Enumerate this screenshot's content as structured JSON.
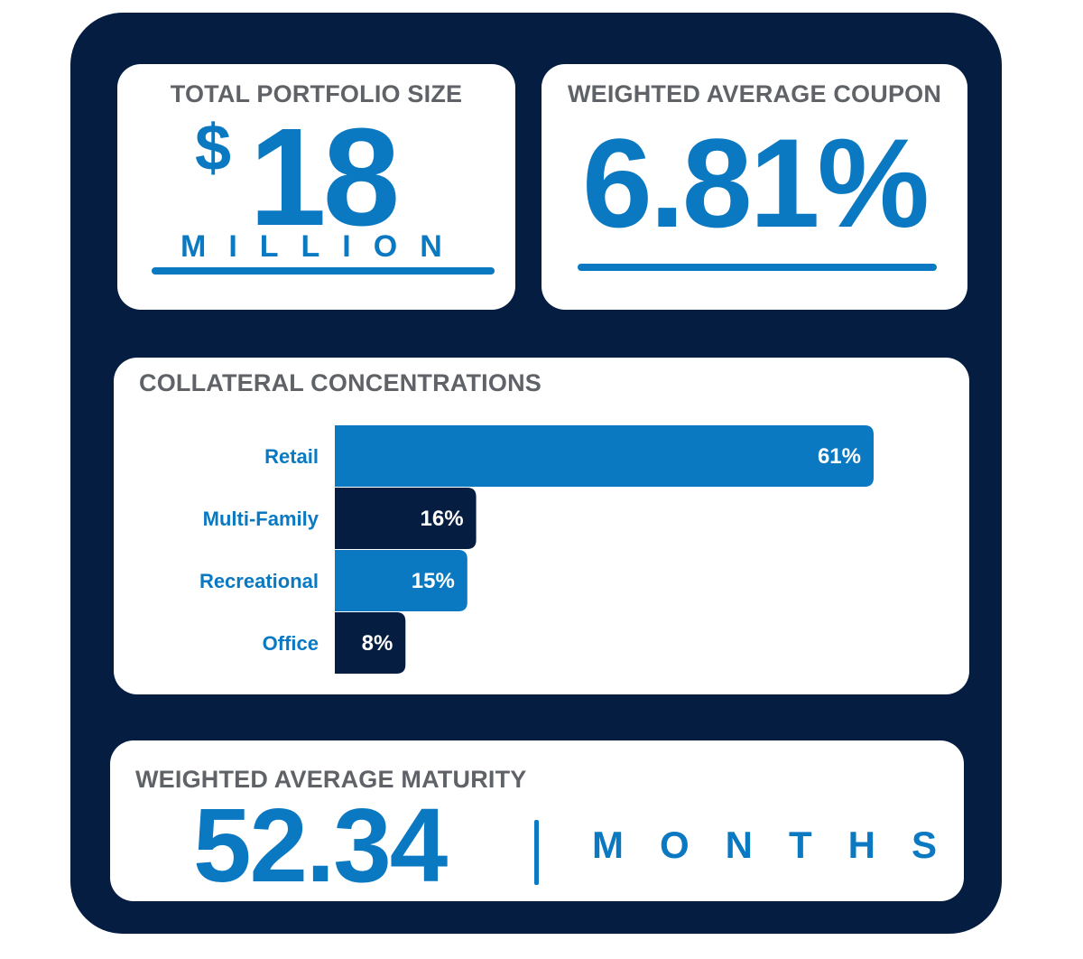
{
  "portfolio": {
    "heading": "TOTAL PORTFOLIO SIZE",
    "currency_symbol": "$",
    "amount": "18",
    "unit": "MILLION"
  },
  "coupon": {
    "heading": "WEIGHTED AVERAGE COUPON",
    "value": "6.81%"
  },
  "maturity": {
    "heading": "WEIGHTED AVERAGE MATURITY",
    "value": "52.34",
    "unit": "MONTHS"
  },
  "colors": {
    "navy": "#061d42",
    "accent_blue": "#0a79c2",
    "heading_gray": "#5f6368",
    "card": "#ffffff"
  },
  "chart_data": {
    "type": "bar",
    "orientation": "horizontal",
    "title": "COLLATERAL CONCENTRATIONS",
    "categories": [
      "Retail",
      "Multi-Family",
      "Recreational",
      "Office"
    ],
    "values": [
      61,
      16,
      15,
      8
    ],
    "value_labels": [
      "61%",
      "16%",
      "15%",
      "8%"
    ],
    "bar_colors": [
      "#0a79c2",
      "#061d42",
      "#0a79c2",
      "#061d42"
    ],
    "unit": "%",
    "xlim": [
      0,
      61
    ],
    "grid": false,
    "legend": "none"
  }
}
